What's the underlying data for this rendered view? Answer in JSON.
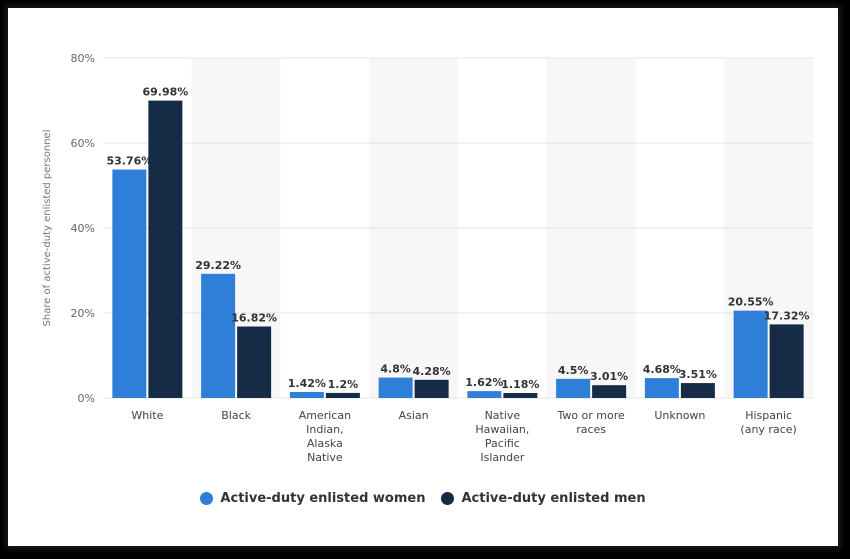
{
  "chart_data": {
    "type": "bar",
    "ylabel": "Share of active-duty enlisted personnel",
    "xlabel": "",
    "ylim": [
      0,
      80
    ],
    "yticks": [
      "0%",
      "20%",
      "40%",
      "60%",
      "80%"
    ],
    "categories": [
      "White",
      "Black",
      "American Indian, Alaska Native",
      "Asian",
      "Native Hawaiian, Pacific Islander",
      "Two or more races",
      "Unknown",
      "Hispanic (any race)"
    ],
    "series": [
      {
        "name": "Active-duty enlisted women",
        "color": "#2f7ed8",
        "values": [
          53.76,
          29.22,
          1.42,
          4.8,
          1.62,
          4.5,
          4.68,
          20.55
        ],
        "labels": [
          "53.76%",
          "29.22%",
          "1.42%",
          "4.8%",
          "1.62%",
          "4.5%",
          "4.68%",
          "20.55%"
        ]
      },
      {
        "name": "Active-duty enlisted men",
        "color": "#162b45",
        "values": [
          69.98,
          16.82,
          1.2,
          4.28,
          1.18,
          3.01,
          3.51,
          17.32
        ],
        "labels": [
          "69.98%",
          "16.82%",
          "1.2%",
          "4.28%",
          "1.18%",
          "3.01%",
          "3.51%",
          "17.32%"
        ]
      }
    ],
    "grid": true,
    "legend_position": "bottom"
  }
}
